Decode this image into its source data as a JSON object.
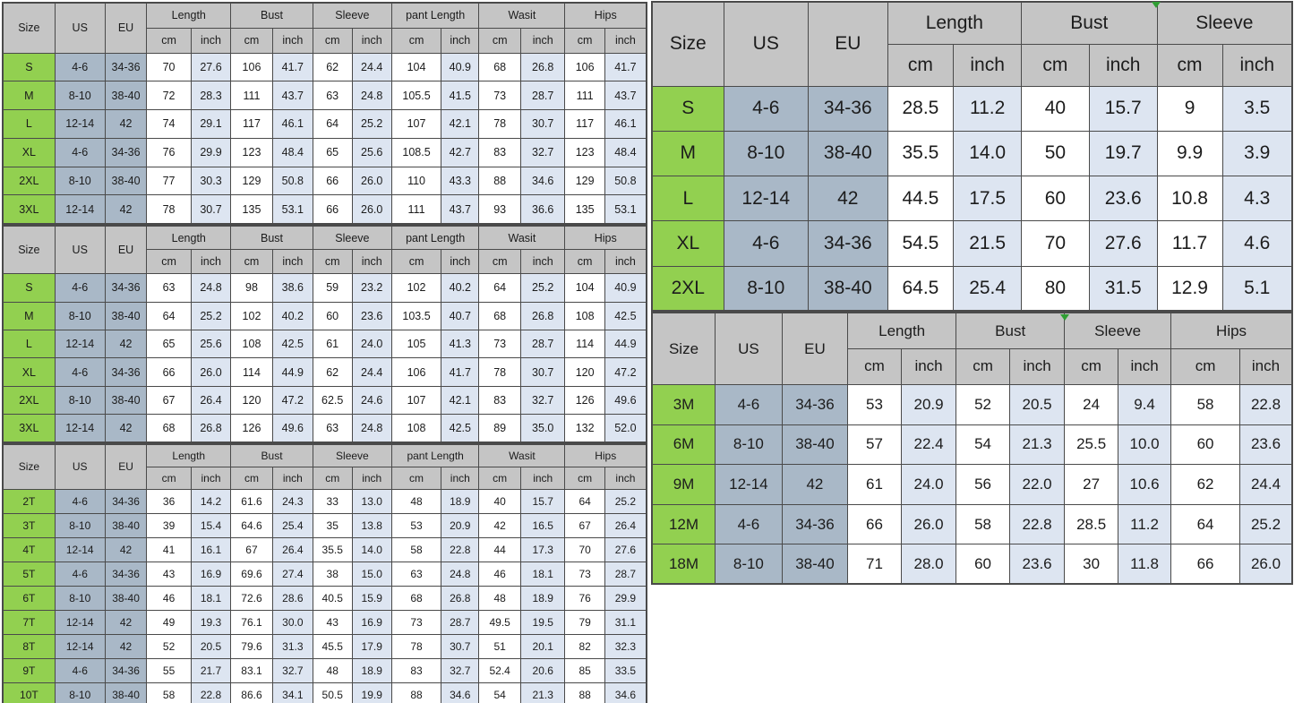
{
  "labels": {
    "size": "Size",
    "us": "US",
    "eu": "EU",
    "cm": "cm",
    "inch": "inch"
  },
  "colors": {
    "header_bg": "#c5c5c5",
    "size_column_bg": "#92d050",
    "us_eu_column_bg": "#a9b8c7",
    "cm_column_bg": "#ffffff",
    "inch_column_bg": "#dde5f1",
    "border": "#4a4a4a",
    "page_bg": "#ffffff",
    "artifact_marker_green": "#2f9e33"
  },
  "tables": [
    {
      "name": "women-two-piece-size-chart-top-left",
      "groups": [
        "Length",
        "Bust",
        "Sleeve",
        "pant Length",
        "Wasit",
        "Hips"
      ],
      "rows": [
        {
          "size": "S",
          "us": "4-6",
          "eu": "34-36",
          "values": [
            "70",
            "27.6",
            "106",
            "41.7",
            "62",
            "24.4",
            "104",
            "40.9",
            "68",
            "26.8",
            "106",
            "41.7"
          ]
        },
        {
          "size": "M",
          "us": "8-10",
          "eu": "38-40",
          "values": [
            "72",
            "28.3",
            "111",
            "43.7",
            "63",
            "24.8",
            "105.5",
            "41.5",
            "73",
            "28.7",
            "111",
            "43.7"
          ]
        },
        {
          "size": "L",
          "us": "12-14",
          "eu": "42",
          "values": [
            "74",
            "29.1",
            "117",
            "46.1",
            "64",
            "25.2",
            "107",
            "42.1",
            "78",
            "30.7",
            "117",
            "46.1"
          ]
        },
        {
          "size": "XL",
          "us": "4-6",
          "eu": "34-36",
          "values": [
            "76",
            "29.9",
            "123",
            "48.4",
            "65",
            "25.6",
            "108.5",
            "42.7",
            "83",
            "32.7",
            "123",
            "48.4"
          ]
        },
        {
          "size": "2XL",
          "us": "8-10",
          "eu": "38-40",
          "values": [
            "77",
            "30.3",
            "129",
            "50.8",
            "66",
            "26.0",
            "110",
            "43.3",
            "88",
            "34.6",
            "129",
            "50.8"
          ]
        },
        {
          "size": "3XL",
          "us": "12-14",
          "eu": "42",
          "values": [
            "78",
            "30.7",
            "135",
            "53.1",
            "66",
            "26.0",
            "111",
            "43.7",
            "93",
            "36.6",
            "135",
            "53.1"
          ]
        }
      ]
    },
    {
      "name": "women-two-piece-size-chart-middle-left",
      "groups": [
        "Length",
        "Bust",
        "Sleeve",
        "pant Length",
        "Wasit",
        "Hips"
      ],
      "rows": [
        {
          "size": "S",
          "us": "4-6",
          "eu": "34-36",
          "values": [
            "63",
            "24.8",
            "98",
            "38.6",
            "59",
            "23.2",
            "102",
            "40.2",
            "64",
            "25.2",
            "104",
            "40.9"
          ]
        },
        {
          "size": "M",
          "us": "8-10",
          "eu": "38-40",
          "values": [
            "64",
            "25.2",
            "102",
            "40.2",
            "60",
            "23.6",
            "103.5",
            "40.7",
            "68",
            "26.8",
            "108",
            "42.5"
          ]
        },
        {
          "size": "L",
          "us": "12-14",
          "eu": "42",
          "values": [
            "65",
            "25.6",
            "108",
            "42.5",
            "61",
            "24.0",
            "105",
            "41.3",
            "73",
            "28.7",
            "114",
            "44.9"
          ]
        },
        {
          "size": "XL",
          "us": "4-6",
          "eu": "34-36",
          "values": [
            "66",
            "26.0",
            "114",
            "44.9",
            "62",
            "24.4",
            "106",
            "41.7",
            "78",
            "30.7",
            "120",
            "47.2"
          ]
        },
        {
          "size": "2XL",
          "us": "8-10",
          "eu": "38-40",
          "values": [
            "67",
            "26.4",
            "120",
            "47.2",
            "62.5",
            "24.6",
            "107",
            "42.1",
            "83",
            "32.7",
            "126",
            "49.6"
          ]
        },
        {
          "size": "3XL",
          "us": "12-14",
          "eu": "42",
          "values": [
            "68",
            "26.8",
            "126",
            "49.6",
            "63",
            "24.8",
            "108",
            "42.5",
            "89",
            "35.0",
            "132",
            "52.0"
          ]
        }
      ]
    },
    {
      "name": "toddler-size-chart-bottom-left",
      "groups": [
        "Length",
        "Bust",
        "Sleeve",
        "pant Length",
        "Wasit",
        "Hips"
      ],
      "rows": [
        {
          "size": "2T",
          "us": "4-6",
          "eu": "34-36",
          "values": [
            "36",
            "14.2",
            "61.6",
            "24.3",
            "33",
            "13.0",
            "48",
            "18.9",
            "40",
            "15.7",
            "64",
            "25.2"
          ]
        },
        {
          "size": "3T",
          "us": "8-10",
          "eu": "38-40",
          "values": [
            "39",
            "15.4",
            "64.6",
            "25.4",
            "35",
            "13.8",
            "53",
            "20.9",
            "42",
            "16.5",
            "67",
            "26.4"
          ]
        },
        {
          "size": "4T",
          "us": "12-14",
          "eu": "42",
          "values": [
            "41",
            "16.1",
            "67",
            "26.4",
            "35.5",
            "14.0",
            "58",
            "22.8",
            "44",
            "17.3",
            "70",
            "27.6"
          ]
        },
        {
          "size": "5T",
          "us": "4-6",
          "eu": "34-36",
          "values": [
            "43",
            "16.9",
            "69.6",
            "27.4",
            "38",
            "15.0",
            "63",
            "24.8",
            "46",
            "18.1",
            "73",
            "28.7"
          ]
        },
        {
          "size": "6T",
          "us": "8-10",
          "eu": "38-40",
          "values": [
            "46",
            "18.1",
            "72.6",
            "28.6",
            "40.5",
            "15.9",
            "68",
            "26.8",
            "48",
            "18.9",
            "76",
            "29.9"
          ]
        },
        {
          "size": "7T",
          "us": "12-14",
          "eu": "42",
          "values": [
            "49",
            "19.3",
            "76.1",
            "30.0",
            "43",
            "16.9",
            "73",
            "28.7",
            "49.5",
            "19.5",
            "79",
            "31.1"
          ]
        },
        {
          "size": "8T",
          "us": "12-14",
          "eu": "42",
          "values": [
            "52",
            "20.5",
            "79.6",
            "31.3",
            "45.5",
            "17.9",
            "78",
            "30.7",
            "51",
            "20.1",
            "82",
            "32.3"
          ]
        },
        {
          "size": "9T",
          "us": "4-6",
          "eu": "34-36",
          "values": [
            "55",
            "21.7",
            "83.1",
            "32.7",
            "48",
            "18.9",
            "83",
            "32.7",
            "52.4",
            "20.6",
            "85",
            "33.5"
          ]
        },
        {
          "size": "10T",
          "us": "8-10",
          "eu": "38-40",
          "values": [
            "58",
            "22.8",
            "86.6",
            "34.1",
            "50.5",
            "19.9",
            "88",
            "34.6",
            "54",
            "21.3",
            "88",
            "34.6"
          ]
        }
      ]
    },
    {
      "name": "adult-size-chart-top-right",
      "groups": [
        "Length",
        "Bust",
        "Sleeve"
      ],
      "rows": [
        {
          "size": "S",
          "us": "4-6",
          "eu": "34-36",
          "values": [
            "28.5",
            "11.2",
            "40",
            "15.7",
            "9",
            "3.5"
          ]
        },
        {
          "size": "M",
          "us": "8-10",
          "eu": "38-40",
          "values": [
            "35.5",
            "14.0",
            "50",
            "19.7",
            "9.9",
            "3.9"
          ]
        },
        {
          "size": "L",
          "us": "12-14",
          "eu": "42",
          "values": [
            "44.5",
            "17.5",
            "60",
            "23.6",
            "10.8",
            "4.3"
          ]
        },
        {
          "size": "XL",
          "us": "4-6",
          "eu": "34-36",
          "values": [
            "54.5",
            "21.5",
            "70",
            "27.6",
            "11.7",
            "4.6"
          ]
        },
        {
          "size": "2XL",
          "us": "8-10",
          "eu": "38-40",
          "values": [
            "64.5",
            "25.4",
            "80",
            "31.5",
            "12.9",
            "5.1"
          ]
        }
      ]
    },
    {
      "name": "baby-months-size-chart-bottom-right",
      "groups": [
        "Length",
        "Bust",
        "Sleeve",
        "Hips"
      ],
      "rows": [
        {
          "size": "3M",
          "us": "4-6",
          "eu": "34-36",
          "values": [
            "53",
            "20.9",
            "52",
            "20.5",
            "24",
            "9.4",
            "58",
            "22.8"
          ]
        },
        {
          "size": "6M",
          "us": "8-10",
          "eu": "38-40",
          "values": [
            "57",
            "22.4",
            "54",
            "21.3",
            "25.5",
            "10.0",
            "60",
            "23.6"
          ]
        },
        {
          "size": "9M",
          "us": "12-14",
          "eu": "42",
          "values": [
            "61",
            "24.0",
            "56",
            "22.0",
            "27",
            "10.6",
            "62",
            "24.4"
          ]
        },
        {
          "size": "12M",
          "us": "4-6",
          "eu": "34-36",
          "values": [
            "66",
            "26.0",
            "58",
            "22.8",
            "28.5",
            "11.2",
            "64",
            "25.2"
          ]
        },
        {
          "size": "18M",
          "us": "8-10",
          "eu": "38-40",
          "values": [
            "71",
            "28.0",
            "60",
            "23.6",
            "30",
            "11.8",
            "66",
            "26.0"
          ]
        }
      ]
    }
  ]
}
